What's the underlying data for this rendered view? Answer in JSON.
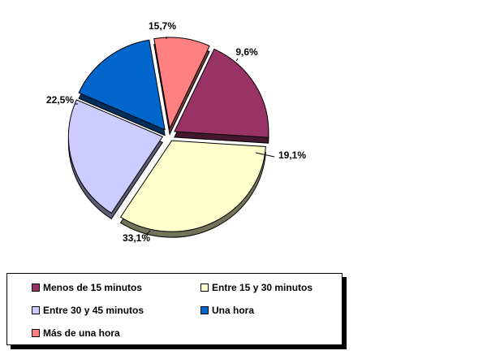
{
  "chart_data": {
    "type": "pie",
    "exploded": true,
    "slices": [
      {
        "name": "Menos de 15 minutos",
        "value": 19.1,
        "label": "19,1%",
        "color": "#993366"
      },
      {
        "name": "Entre 15 y 30 minutos",
        "value": 33.1,
        "label": "33,1%",
        "color": "#FFFFCC"
      },
      {
        "name": "Entre 30 y 45 minutos",
        "value": 22.5,
        "label": "22,5%",
        "color": "#CCCCFF"
      },
      {
        "name": "Una hora",
        "value": 15.7,
        "label": "15,7%",
        "color": "#0066CC"
      },
      {
        "name": "Más de una hora",
        "value": 9.6,
        "label": "9,6%",
        "color": "#FF8080"
      }
    ],
    "legend_position": "bottom-left"
  }
}
